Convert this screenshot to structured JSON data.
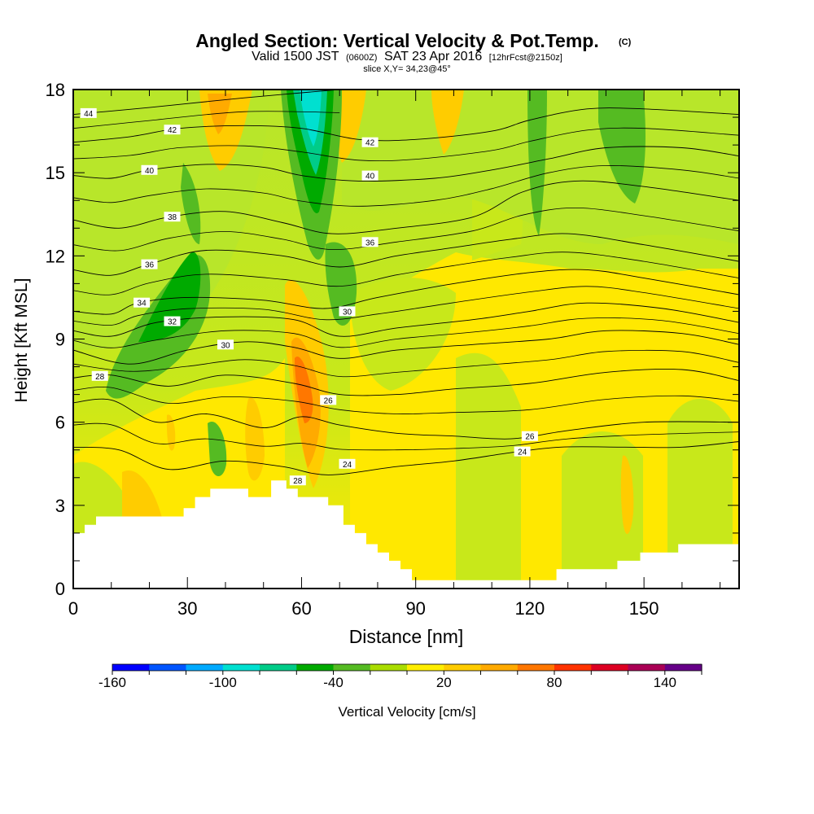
{
  "chart_data": {
    "type": "contour",
    "title_main": "Angled Section: Vertical Velocity & Pot.Temp.",
    "title_mark": "(C)",
    "subtitle_pre": "Valid 1500 JST",
    "subtitle_z": "(0600Z)",
    "subtitle_date": "SAT 23 Apr 2016",
    "subtitle_fcst": "[12hrFcst@2150z]",
    "slice_label": "slice X,Y= 34,23@45°",
    "xlabel": "Distance [nm]",
    "ylabel": "Height [Kft MSL]",
    "xlim": [
      0,
      175
    ],
    "ylim": [
      0,
      18
    ],
    "x_ticks": [
      "0",
      "30",
      "60",
      "90",
      "120",
      "150"
    ],
    "y_ticks": [
      "0",
      "3",
      "6",
      "9",
      "12",
      "15",
      "18"
    ],
    "colorbar": {
      "label": "Vertical Velocity [cm/s]",
      "tick_labels": [
        "-160",
        "-100",
        "-40",
        "20",
        "80",
        "140"
      ],
      "colors": [
        "#0000ff",
        "#0055ff",
        "#00aaff",
        "#00e0d0",
        "#00cc88",
        "#00aa00",
        "#55bb22",
        "#aadd00",
        "#ffee00",
        "#ffcc00",
        "#ffaa00",
        "#ff7700",
        "#ff3300",
        "#dd0022",
        "#aa0055",
        "#660088"
      ]
    },
    "theta_contours": [
      {
        "value": 44,
        "label": "44",
        "points": [
          [
            0,
            17.1
          ],
          [
            20,
            17.35
          ],
          [
            45,
            17.7
          ],
          [
            70,
            18
          ]
        ]
      },
      {
        "value": 42,
        "label": "42",
        "points": [
          [
            0,
            16.1
          ],
          [
            15,
            16.3
          ],
          [
            28,
            16.6
          ],
          [
            45,
            16.7
          ],
          [
            60,
            16.6
          ],
          [
            75,
            16.2
          ],
          [
            90,
            16.2
          ],
          [
            110,
            16.5
          ],
          [
            120,
            16.9
          ],
          [
            135,
            17.3
          ],
          [
            150,
            17.3
          ],
          [
            175,
            17.1
          ]
        ]
      },
      {
        "value": 40,
        "label": "40",
        "points": [
          [
            0,
            14.9
          ],
          [
            10,
            14.8
          ],
          [
            20,
            15.1
          ],
          [
            35,
            15.3
          ],
          [
            50,
            15.2
          ],
          [
            60,
            14.9
          ],
          [
            75,
            14.7
          ],
          [
            95,
            14.8
          ],
          [
            110,
            15.1
          ],
          [
            125,
            15.5
          ],
          [
            140,
            15.9
          ],
          [
            160,
            15.9
          ],
          [
            175,
            15.6
          ]
        ]
      },
      {
        "value": 38,
        "label": "38",
        "points": [
          [
            0,
            13.3
          ],
          [
            12,
            13.0
          ],
          [
            25,
            13.4
          ],
          [
            40,
            13.6
          ],
          [
            55,
            13.2
          ],
          [
            68,
            12.8
          ],
          [
            85,
            13.0
          ],
          [
            105,
            13.4
          ],
          [
            118,
            14.3
          ],
          [
            132,
            14.7
          ],
          [
            150,
            14.5
          ],
          [
            175,
            14.0
          ]
        ]
      },
      {
        "value": 36,
        "label": "36",
        "points": [
          [
            0,
            11.5
          ],
          [
            10,
            11.3
          ],
          [
            20,
            11.7
          ],
          [
            35,
            12.2
          ],
          [
            55,
            12.0
          ],
          [
            70,
            11.6
          ],
          [
            85,
            12.0
          ],
          [
            100,
            12.3
          ],
          [
            115,
            12.6
          ],
          [
            130,
            12.8
          ],
          [
            150,
            12.4
          ],
          [
            175,
            11.8
          ]
        ]
      },
      {
        "value": 34,
        "label": "34",
        "points": [
          [
            0,
            10.0
          ],
          [
            10,
            9.9
          ],
          [
            17,
            10.3
          ],
          [
            30,
            10.5
          ],
          [
            50,
            10.4
          ],
          [
            66,
            10.1
          ],
          [
            80,
            10.5
          ],
          [
            100,
            11.0
          ],
          [
            120,
            11.4
          ],
          [
            135,
            11.5
          ],
          [
            150,
            11.2
          ],
          [
            175,
            10.6
          ]
        ]
      },
      {
        "value": 32,
        "label": "32",
        "points": [
          [
            0,
            9.3
          ],
          [
            10,
            9.1
          ],
          [
            22,
            9.6
          ],
          [
            40,
            9.8
          ],
          [
            58,
            9.7
          ],
          [
            70,
            9.1
          ],
          [
            85,
            9.4
          ],
          [
            105,
            9.7
          ],
          [
            120,
            10.0
          ],
          [
            135,
            10.3
          ],
          [
            155,
            10.1
          ],
          [
            175,
            9.6
          ]
        ]
      },
      {
        "value": 30,
        "label": "30",
        "points": [
          [
            0,
            8.6
          ],
          [
            15,
            8.1
          ],
          [
            30,
            8.6
          ],
          [
            45,
            8.9
          ],
          [
            58,
            8.7
          ],
          [
            70,
            8.3
          ],
          [
            85,
            8.6
          ],
          [
            105,
            8.8
          ],
          [
            125,
            9.0
          ],
          [
            140,
            9.3
          ],
          [
            160,
            9.2
          ],
          [
            175,
            8.8
          ]
        ]
      },
      {
        "value": 28,
        "label": "28",
        "points": [
          [
            0,
            7.6
          ],
          [
            10,
            7.7
          ],
          [
            25,
            7.3
          ],
          [
            40,
            7.7
          ],
          [
            58,
            7.4
          ],
          [
            70,
            7.0
          ],
          [
            85,
            7.0
          ],
          [
            100,
            7.2
          ],
          [
            120,
            7.4
          ],
          [
            140,
            7.8
          ],
          [
            160,
            7.9
          ],
          [
            175,
            7.5
          ]
        ]
      },
      {
        "value": 26,
        "label": "26",
        "points": [
          [
            0,
            6.7
          ],
          [
            10,
            6.8
          ],
          [
            22,
            6.0
          ],
          [
            35,
            6.3
          ],
          [
            50,
            5.8
          ],
          [
            60,
            6.2
          ],
          [
            70,
            5.9
          ],
          [
            85,
            5.6
          ],
          [
            100,
            5.5
          ],
          [
            115,
            5.4
          ],
          [
            130,
            5.7
          ],
          [
            150,
            6.0
          ],
          [
            175,
            6.0
          ]
        ]
      },
      {
        "value": 24,
        "label": "24",
        "points": [
          [
            0,
            5.1
          ],
          [
            12,
            5.0
          ],
          [
            25,
            4.3
          ],
          [
            40,
            4.6
          ],
          [
            55,
            4.4
          ],
          [
            67,
            4.1
          ],
          [
            85,
            4.4
          ],
          [
            100,
            4.6
          ],
          [
            115,
            4.9
          ],
          [
            128,
            5.1
          ],
          [
            145,
            5.1
          ],
          [
            160,
            5.1
          ],
          [
            175,
            5.3
          ]
        ]
      }
    ],
    "theta_extra_labels": [
      {
        "label": "42",
        "x": 78,
        "y": 16.1
      },
      {
        "label": "40",
        "x": 78,
        "y": 14.9
      },
      {
        "label": "36",
        "x": 78,
        "y": 12.5
      },
      {
        "label": "30",
        "x": 72,
        "y": 10.0
      },
      {
        "label": "26",
        "x": 67,
        "y": 6.8
      },
      {
        "label": "24",
        "x": 72,
        "y": 4.5
      },
      {
        "label": "28",
        "x": 59,
        "y": 3.9
      }
    ],
    "terrain_kft": [
      [
        0,
        2.0
      ],
      [
        3,
        2.0
      ],
      [
        3,
        2.3
      ],
      [
        6,
        2.3
      ],
      [
        6,
        2.6
      ],
      [
        29,
        2.6
      ],
      [
        29,
        2.9
      ],
      [
        32,
        2.9
      ],
      [
        32,
        3.3
      ],
      [
        36,
        3.3
      ],
      [
        36,
        3.6
      ],
      [
        46,
        3.6
      ],
      [
        46,
        3.3
      ],
      [
        52,
        3.3
      ],
      [
        52,
        3.9
      ],
      [
        56,
        3.9
      ],
      [
        56,
        3.6
      ],
      [
        59,
        3.6
      ],
      [
        59,
        3.3
      ],
      [
        67,
        3.3
      ],
      [
        67,
        3.0
      ],
      [
        71,
        3.0
      ],
      [
        71,
        2.3
      ],
      [
        74,
        2.3
      ],
      [
        74,
        2.0
      ],
      [
        77,
        2.0
      ],
      [
        77,
        1.6
      ],
      [
        80,
        1.6
      ],
      [
        80,
        1.3
      ],
      [
        83,
        1.3
      ],
      [
        83,
        1.0
      ],
      [
        86,
        1.0
      ],
      [
        86,
        0.7
      ],
      [
        89,
        0.7
      ],
      [
        89,
        0.3
      ],
      [
        127,
        0.3
      ],
      [
        127,
        0.7
      ],
      [
        143,
        0.7
      ],
      [
        143,
        1.0
      ],
      [
        149,
        1.0
      ],
      [
        149,
        1.3
      ],
      [
        159,
        1.3
      ],
      [
        159,
        1.6
      ],
      [
        175,
        1.6
      ]
    ]
  }
}
